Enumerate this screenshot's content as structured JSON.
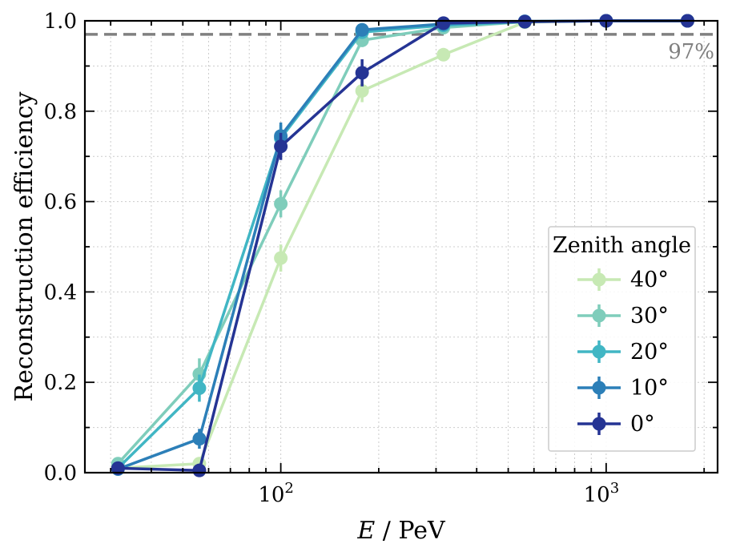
{
  "chart_data": {
    "type": "line",
    "title": "",
    "xlabel_var": "E",
    "xlabel_unit": " / PeV",
    "ylabel": "Reconstruction efficiency",
    "xscale": "log",
    "xlim": [
      25,
      2200
    ],
    "ylim": [
      0.0,
      1.0
    ],
    "grid": true,
    "legend_position": "lower-right",
    "legend_title": "Zenith angle",
    "yticks": [
      {
        "value": 0.0,
        "label": "0.0"
      },
      {
        "value": 0.2,
        "label": "0.2"
      },
      {
        "value": 0.4,
        "label": "0.4"
      },
      {
        "value": 0.6,
        "label": "0.6"
      },
      {
        "value": 0.8,
        "label": "0.8"
      },
      {
        "value": 1.0,
        "label": "1.0"
      }
    ],
    "xticks": [
      {
        "value": 100,
        "base": "10",
        "exp": "2"
      },
      {
        "value": 1000,
        "base": "10",
        "exp": "3"
      }
    ],
    "reference_line": {
      "value": 0.97,
      "label": "97%",
      "color": "#808080"
    },
    "x": [
      31.6,
      56.2,
      100,
      177.8,
      316.2,
      562.3,
      1000,
      1778
    ],
    "series": [
      {
        "name": "40°",
        "color": "#c7e9b4",
        "values": [
          0.01,
          0.02,
          0.475,
          0.845,
          0.925,
          0.997,
          1.0,
          1.0
        ],
        "errors": [
          0.005,
          0.01,
          0.03,
          0.025,
          0.012,
          0.003,
          0.0,
          0.0
        ]
      },
      {
        "name": "30°",
        "color": "#7fcdbb",
        "values": [
          0.02,
          0.218,
          0.595,
          0.957,
          0.985,
          0.998,
          1.0,
          1.0
        ],
        "errors": [
          0.008,
          0.035,
          0.03,
          0.015,
          0.006,
          0.002,
          0.0,
          0.0
        ]
      },
      {
        "name": "20°",
        "color": "#41b6c4",
        "values": [
          0.01,
          0.187,
          0.74,
          0.975,
          0.99,
          0.998,
          1.0,
          1.0
        ],
        "errors": [
          0.005,
          0.03,
          0.03,
          0.01,
          0.005,
          0.002,
          0.0,
          0.0
        ]
      },
      {
        "name": "10°",
        "color": "#2c7fb8",
        "values": [
          0.008,
          0.075,
          0.745,
          0.98,
          0.993,
          0.999,
          1.0,
          1.0
        ],
        "errors": [
          0.004,
          0.022,
          0.03,
          0.008,
          0.004,
          0.001,
          0.0,
          0.0
        ]
      },
      {
        "name": "0°",
        "color": "#253494",
        "values": [
          0.01,
          0.005,
          0.722,
          0.885,
          0.995,
          0.998,
          1.0,
          1.0
        ],
        "errors": [
          0.005,
          0.004,
          0.03,
          0.03,
          0.004,
          0.002,
          0.0,
          0.0
        ]
      }
    ]
  }
}
